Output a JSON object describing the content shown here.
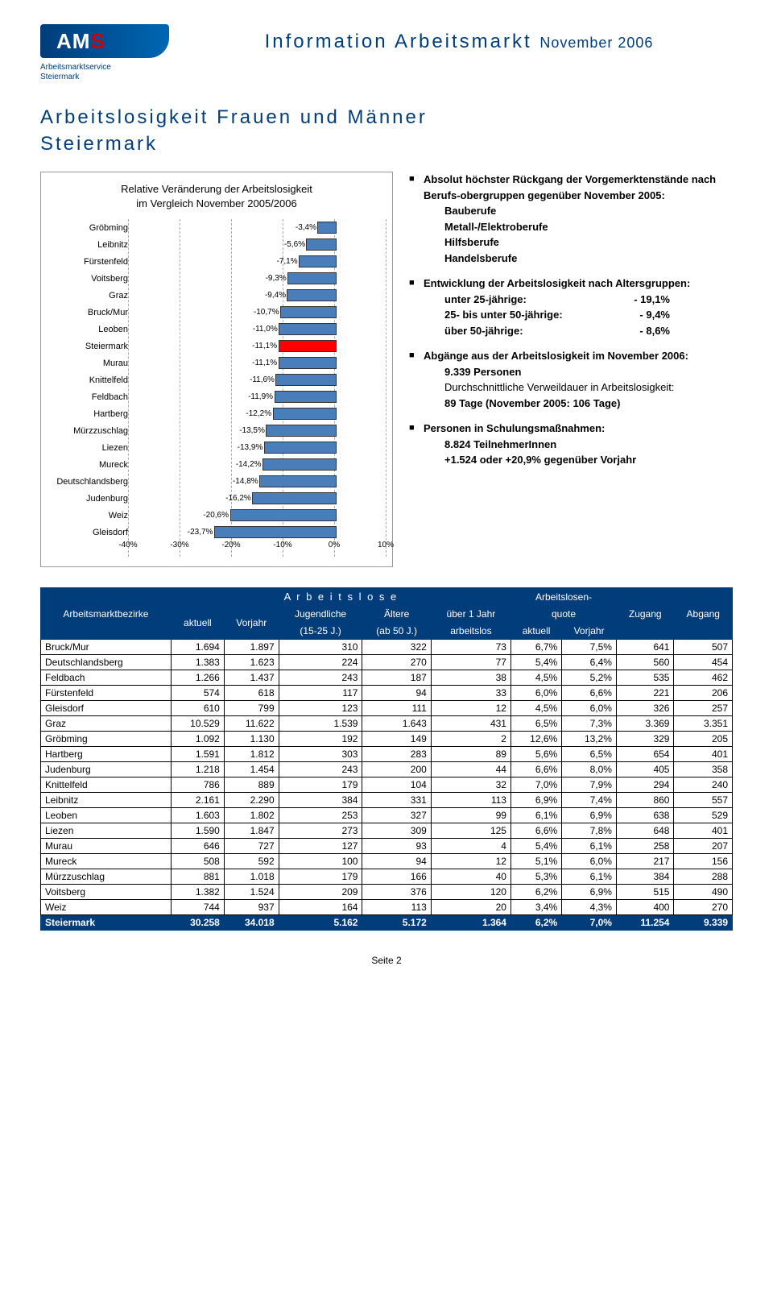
{
  "header": {
    "logo_text_a": "AM",
    "logo_text_s": "S",
    "logo_sub1": "Arbeitsmarktservice",
    "logo_sub2": "Steiermark",
    "title_main": "Information Arbeitsmarkt",
    "title_month": "November 2006"
  },
  "section": {
    "title1": "Arbeitslosigkeit Frauen und Männer",
    "title2": "Steiermark"
  },
  "chart": {
    "title1": "Relative Veränderung der Arbeitslosigkeit",
    "title2": "im Vergleich November 2005/2006",
    "xmin": -40,
    "xmax": 10,
    "xticks": [
      -40,
      -30,
      -20,
      -10,
      0,
      10
    ],
    "xtick_labels": [
      "-40%",
      "-30%",
      "-20%",
      "-10%",
      "0%",
      "10%"
    ],
    "bar_color": "#4a7ebb",
    "highlight_color": "#ff0000",
    "rows": [
      {
        "label": "Gröbming",
        "value": -3.4,
        "text": "-3,4%"
      },
      {
        "label": "Leibnitz",
        "value": -5.6,
        "text": "-5,6%"
      },
      {
        "label": "Fürstenfeld",
        "value": -7.1,
        "text": "-7,1%"
      },
      {
        "label": "Voitsberg",
        "value": -9.3,
        "text": "-9,3%"
      },
      {
        "label": "Graz",
        "value": -9.4,
        "text": "-9,4%"
      },
      {
        "label": "Bruck/Mur",
        "value": -10.7,
        "text": "-10,7%"
      },
      {
        "label": "Leoben",
        "value": -11.0,
        "text": "-11,0%"
      },
      {
        "label": "Steiermark",
        "value": -11.1,
        "text": "-11,1%",
        "highlight": true
      },
      {
        "label": "Murau",
        "value": -11.1,
        "text": "-11,1%"
      },
      {
        "label": "Knittelfeld",
        "value": -11.6,
        "text": "-11,6%"
      },
      {
        "label": "Feldbach",
        "value": -11.9,
        "text": "-11,9%"
      },
      {
        "label": "Hartberg",
        "value": -12.2,
        "text": "-12,2%"
      },
      {
        "label": "Mürzzuschlag",
        "value": -13.5,
        "text": "-13,5%"
      },
      {
        "label": "Liezen",
        "value": -13.9,
        "text": "-13,9%"
      },
      {
        "label": "Mureck",
        "value": -14.2,
        "text": "-14,2%"
      },
      {
        "label": "Deutschlandsberg",
        "value": -14.8,
        "text": "-14,8%"
      },
      {
        "label": "Judenburg",
        "value": -16.2,
        "text": "-16,2%"
      },
      {
        "label": "Weiz",
        "value": -20.6,
        "text": "-20,6%"
      },
      {
        "label": "Gleisdorf",
        "value": -23.7,
        "text": "-23,7%"
      }
    ]
  },
  "bullets": {
    "b1_header": "Absolut höchster Rückgang der Vorgemerktenstände nach Berufs-obergruppen gegenüber November 2005:",
    "b1_items": [
      "Bauberufe",
      "Metall-/Elektroberufe",
      "Hilfsberufe",
      "Handelsberufe"
    ],
    "b2_header": "Entwicklung der Arbeitslosigkeit nach Altersgruppen:",
    "b2_rows": [
      {
        "label": "unter 25-jährige:",
        "value": "- 19,1%"
      },
      {
        "label": "25- bis unter 50-jährige:",
        "value": "- 9,4%"
      },
      {
        "label": "über 50-jährige:",
        "value": "- 8,6%"
      }
    ],
    "b3_header": "Abgänge aus der Arbeitslosigkeit im November 2006:",
    "b3_l1": "9.339 Personen",
    "b3_l2": "Durchschnittliche Verweildauer in Arbeitslosigkeit:",
    "b3_l3": "89 Tage  (November 2005: 106 Tage)",
    "b4_header": "Personen in Schulungsmaßnahmen:",
    "b4_l1": "8.824 TeilnehmerInnen",
    "b4_l2": "+1.524 oder +20,9% gegenüber Vorjahr"
  },
  "table": {
    "h_region": "Arbeitsmarktbezirke",
    "h_group1": "A r b e i t s l o s e",
    "h_group2": "Arbeitslosen-",
    "h_aktuell": "aktuell",
    "h_vorjahr": "Vorjahr",
    "h_jugend1": "Jugendliche",
    "h_jugend2": "(15-25 J.)",
    "h_alt1": "Ältere",
    "h_alt2": "(ab 50 J.)",
    "h_uber1": "über 1 Jahr",
    "h_uber2": "arbeitslos",
    "h_quote": "quote",
    "h_zugang": "Zugang",
    "h_abgang": "Abgang",
    "rows": [
      [
        "Bruck/Mur",
        "1.694",
        "1.897",
        "310",
        "322",
        "73",
        "6,7%",
        "7,5%",
        "641",
        "507"
      ],
      [
        "Deutschlandsberg",
        "1.383",
        "1.623",
        "224",
        "270",
        "77",
        "5,4%",
        "6,4%",
        "560",
        "454"
      ],
      [
        "Feldbach",
        "1.266",
        "1.437",
        "243",
        "187",
        "38",
        "4,5%",
        "5,2%",
        "535",
        "462"
      ],
      [
        "Fürstenfeld",
        "574",
        "618",
        "117",
        "94",
        "33",
        "6,0%",
        "6,6%",
        "221",
        "206"
      ],
      [
        "Gleisdorf",
        "610",
        "799",
        "123",
        "111",
        "12",
        "4,5%",
        "6,0%",
        "326",
        "257"
      ],
      [
        "Graz",
        "10.529",
        "11.622",
        "1.539",
        "1.643",
        "431",
        "6,5%",
        "7,3%",
        "3.369",
        "3.351"
      ],
      [
        "Gröbming",
        "1.092",
        "1.130",
        "192",
        "149",
        "2",
        "12,6%",
        "13,2%",
        "329",
        "205"
      ],
      [
        "Hartberg",
        "1.591",
        "1.812",
        "303",
        "283",
        "89",
        "5,6%",
        "6,5%",
        "654",
        "401"
      ],
      [
        "Judenburg",
        "1.218",
        "1.454",
        "243",
        "200",
        "44",
        "6,6%",
        "8,0%",
        "405",
        "358"
      ],
      [
        "Knittelfeld",
        "786",
        "889",
        "179",
        "104",
        "32",
        "7,0%",
        "7,9%",
        "294",
        "240"
      ],
      [
        "Leibnitz",
        "2.161",
        "2.290",
        "384",
        "331",
        "113",
        "6,9%",
        "7,4%",
        "860",
        "557"
      ],
      [
        "Leoben",
        "1.603",
        "1.802",
        "253",
        "327",
        "99",
        "6,1%",
        "6,9%",
        "638",
        "529"
      ],
      [
        "Liezen",
        "1.590",
        "1.847",
        "273",
        "309",
        "125",
        "6,6%",
        "7,8%",
        "648",
        "401"
      ],
      [
        "Murau",
        "646",
        "727",
        "127",
        "93",
        "4",
        "5,4%",
        "6,1%",
        "258",
        "207"
      ],
      [
        "Mureck",
        "508",
        "592",
        "100",
        "94",
        "12",
        "5,1%",
        "6,0%",
        "217",
        "156"
      ],
      [
        "Mürzzuschlag",
        "881",
        "1.018",
        "179",
        "166",
        "40",
        "5,3%",
        "6,1%",
        "384",
        "288"
      ],
      [
        "Voitsberg",
        "1.382",
        "1.524",
        "209",
        "376",
        "120",
        "6,2%",
        "6,9%",
        "515",
        "490"
      ],
      [
        "Weiz",
        "744",
        "937",
        "164",
        "113",
        "20",
        "3,4%",
        "4,3%",
        "400",
        "270"
      ]
    ],
    "total": [
      "Steiermark",
      "30.258",
      "34.018",
      "5.162",
      "5.172",
      "1.364",
      "6,2%",
      "7,0%",
      "11.254",
      "9.339"
    ]
  },
  "footer": "Seite 2"
}
